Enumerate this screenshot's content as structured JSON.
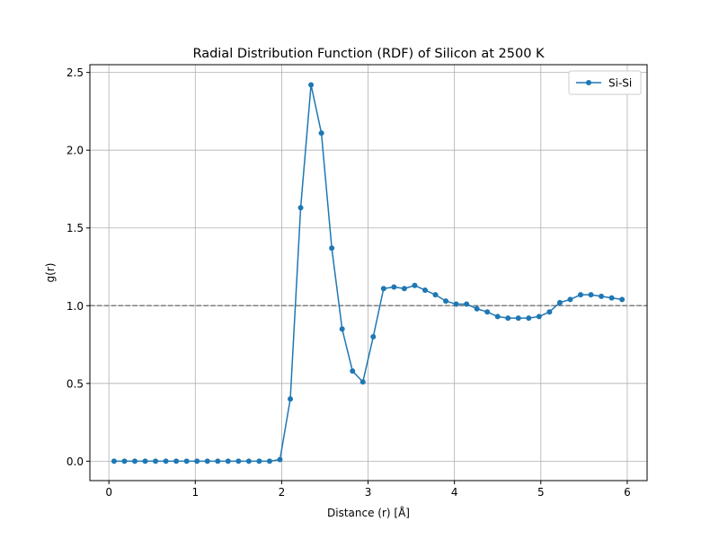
{
  "chart_data": {
    "type": "line",
    "title": "Radial Distribution Function (RDF) of Silicon at 2500 K",
    "xlabel": "Distance (r) [Å]",
    "ylabel": "g(r)",
    "xlim": [
      -0.22,
      6.23
    ],
    "ylim": [
      -0.125,
      2.55
    ],
    "xticks": [
      0,
      1,
      2,
      3,
      4,
      5,
      6
    ],
    "xtick_labels": [
      "0",
      "1",
      "2",
      "3",
      "4",
      "5",
      "6"
    ],
    "yticks": [
      0.0,
      0.5,
      1.0,
      1.5,
      2.0,
      2.5
    ],
    "ytick_labels": [
      "0.0",
      "0.5",
      "1.0",
      "1.5",
      "2.0",
      "2.5"
    ],
    "grid": true,
    "legend_position": "upper right",
    "reference_line": {
      "y": 1.0,
      "style": "dashed",
      "color": "#808080"
    },
    "series": [
      {
        "name": "Si-Si",
        "color": "#1f77b4",
        "marker": "circle",
        "x": [
          0.06,
          0.18,
          0.3,
          0.42,
          0.54,
          0.66,
          0.78,
          0.9,
          1.02,
          1.14,
          1.26,
          1.38,
          1.5,
          1.62,
          1.74,
          1.86,
          1.98,
          2.1,
          2.22,
          2.34,
          2.46,
          2.58,
          2.7,
          2.82,
          2.94,
          3.06,
          3.18,
          3.3,
          3.42,
          3.54,
          3.66,
          3.78,
          3.9,
          4.02,
          4.14,
          4.26,
          4.38,
          4.5,
          4.62,
          4.74,
          4.86,
          4.98,
          5.1,
          5.22,
          5.34,
          5.46,
          5.58,
          5.7,
          5.82,
          5.94
        ],
        "y": [
          0.0,
          0.0,
          0.0,
          0.0,
          0.0,
          0.0,
          0.0,
          0.0,
          0.0,
          0.0,
          0.0,
          0.0,
          0.0,
          0.0,
          0.0,
          0.0,
          0.01,
          0.4,
          1.63,
          2.42,
          2.11,
          1.37,
          0.85,
          0.58,
          0.51,
          0.8,
          1.11,
          1.12,
          1.11,
          1.13,
          1.1,
          1.07,
          1.03,
          1.01,
          1.01,
          0.98,
          0.96,
          0.93,
          0.92,
          0.92,
          0.92,
          0.93,
          0.96,
          1.02,
          1.04,
          1.07,
          1.07,
          1.06,
          1.05,
          1.04
        ]
      }
    ]
  }
}
